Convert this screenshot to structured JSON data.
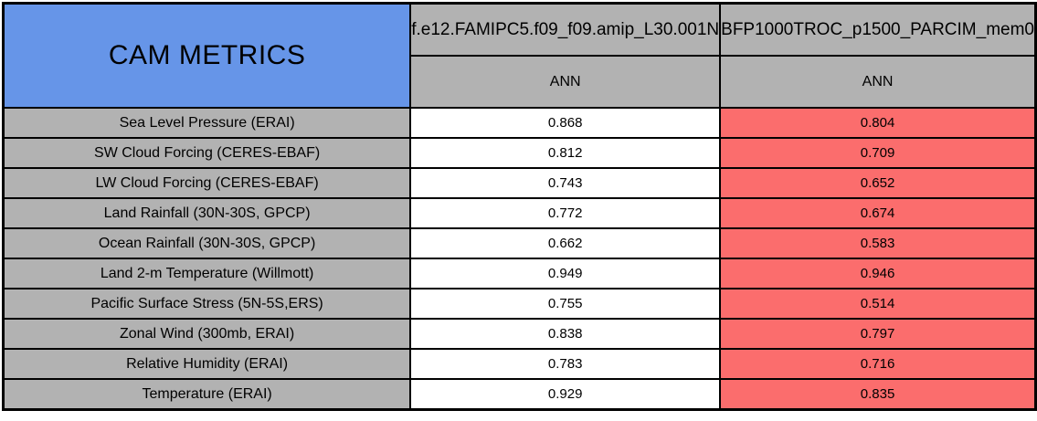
{
  "colors": {
    "title_bg": "#6695E8",
    "header_bg": "#B2B2B2",
    "metric_label_bg": "#B2B2B2",
    "run1_value_bg": "#FFFFFF",
    "run2_value_bg": "#FB6D6D",
    "border": "#000000",
    "text": "#000000",
    "page_bg": "#FFFFFF"
  },
  "table": {
    "title": "CAM METRICS",
    "columns": [
      {
        "run_name": "f.e12.FAMIPC5.f09_f09.amip_L30.001N",
        "season": "ANN"
      },
      {
        "run_name": "BFP1000TROC_p1500_PARCIM_mem0",
        "season": "ANN"
      }
    ],
    "rows": [
      {
        "metric": "Sea Level Pressure (ERAI)",
        "values": [
          "0.868",
          "0.804"
        ]
      },
      {
        "metric": "SW Cloud Forcing (CERES-EBAF)",
        "values": [
          "0.812",
          "0.709"
        ]
      },
      {
        "metric": "LW Cloud Forcing (CERES-EBAF)",
        "values": [
          "0.743",
          "0.652"
        ]
      },
      {
        "metric": "Land Rainfall (30N-30S, GPCP)",
        "values": [
          "0.772",
          "0.674"
        ]
      },
      {
        "metric": "Ocean Rainfall (30N-30S, GPCP)",
        "values": [
          "0.662",
          "0.583"
        ]
      },
      {
        "metric": "Land 2-m Temperature (Willmott)",
        "values": [
          "0.949",
          "0.946"
        ]
      },
      {
        "metric": "Pacific Surface Stress (5N-5S,ERS)",
        "values": [
          "0.755",
          "0.514"
        ]
      },
      {
        "metric": "Zonal Wind (300mb, ERAI)",
        "values": [
          "0.838",
          "0.797"
        ]
      },
      {
        "metric": "Relative Humidity (ERAI)",
        "values": [
          "0.783",
          "0.716"
        ]
      },
      {
        "metric": "Temperature (ERAI)",
        "values": [
          "0.929",
          "0.835"
        ]
      }
    ]
  },
  "chart_data": {
    "type": "table",
    "title": "CAM METRICS",
    "columns": [
      "f.e12.FAMIPC5.f09_f09.amip_L30.001N",
      "BFP1000TROC_p1500_PARCIM_mem0"
    ],
    "subheaders": [
      "ANN",
      "ANN"
    ],
    "categories": [
      "Sea Level Pressure (ERAI)",
      "SW Cloud Forcing (CERES-EBAF)",
      "LW Cloud Forcing (CERES-EBAF)",
      "Land Rainfall (30N-30S, GPCP)",
      "Ocean Rainfall (30N-30S, GPCP)",
      "Land 2-m Temperature (Willmott)",
      "Pacific Surface Stress (5N-5S,ERS)",
      "Zonal Wind (300mb, ERAI)",
      "Relative Humidity (ERAI)",
      "Temperature (ERAI)"
    ],
    "series": [
      {
        "name": "f.e12.FAMIPC5.f09_f09.amip_L30.001N",
        "season": "ANN",
        "cell_color": "#FFFFFF",
        "values": [
          0.868,
          0.812,
          0.743,
          0.772,
          0.662,
          0.949,
          0.755,
          0.838,
          0.783,
          0.929
        ]
      },
      {
        "name": "BFP1000TROC_p1500_PARCIM_mem0",
        "season": "ANN",
        "cell_color": "#FB6D6D",
        "values": [
          0.804,
          0.709,
          0.652,
          0.674,
          0.583,
          0.946,
          0.514,
          0.797,
          0.716,
          0.835
        ]
      }
    ]
  }
}
